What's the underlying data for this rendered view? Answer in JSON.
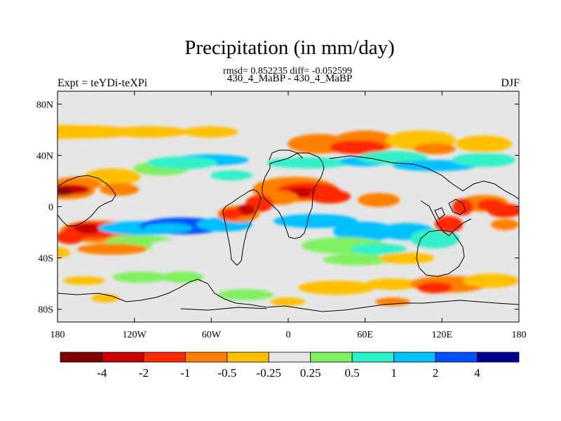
{
  "figure": {
    "title": "Precipitation (in mm/day)",
    "stats": "rmsd= 0.852235 diff= -0.052599",
    "subtitle": "430_4_MaBP - 430_4_MaBP",
    "left_label": "Expt = teYDi-teXPi",
    "right_label": "DJF"
  },
  "chart_data": {
    "type": "heatmap",
    "variable": "Precipitation difference",
    "units": "mm/day",
    "season": "DJF",
    "x_axis": {
      "range": [
        -180,
        180
      ],
      "ticks": [
        -180,
        -120,
        -60,
        0,
        60,
        120,
        180
      ],
      "tick_labels": [
        "180",
        "120W",
        "60W",
        "0",
        "60E",
        "120E",
        "180"
      ]
    },
    "y_axis": {
      "range": [
        -90,
        90
      ],
      "ticks": [
        80,
        40,
        0,
        -40,
        -80
      ],
      "tick_labels": [
        "80N",
        "40N",
        "0",
        "40S",
        "80S"
      ]
    },
    "colorbar": {
      "colors": [
        "#800000",
        "#c80000",
        "#ff2a00",
        "#ff8000",
        "#ffc000",
        "#e6e6e6",
        "#80f060",
        "#30f0c8",
        "#00c0ff",
        "#0050ff",
        "#000090"
      ],
      "labels": [
        "-4",
        "-2",
        "-1",
        "-0.5",
        "-0.25",
        "0.25",
        "0.5",
        "1",
        "2",
        "4"
      ]
    },
    "background_color": "#e6e6e6"
  }
}
